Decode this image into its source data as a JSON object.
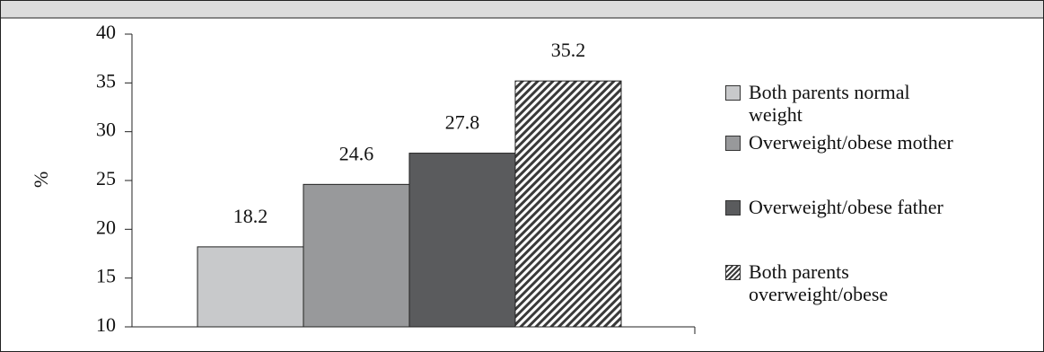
{
  "chart_data": {
    "type": "bar",
    "ylabel": "%",
    "ylim": [
      10,
      40
    ],
    "yticks": [
      10,
      15,
      20,
      25,
      30,
      35,
      40
    ],
    "series": [
      {
        "name": "Both parents normal weight",
        "color": "#c8c9cb",
        "values": [
          18.2
        ]
      },
      {
        "name": "Overweight/obese mother",
        "color": "#98999b",
        "values": [
          24.6
        ]
      },
      {
        "name": "Overweight/obese father",
        "color": "#5a5b5d",
        "values": [
          27.8
        ]
      },
      {
        "name": "Both parents overweight/obese",
        "color": "#3a3a3a",
        "hatch": true,
        "values": [
          35.2
        ]
      }
    ]
  }
}
